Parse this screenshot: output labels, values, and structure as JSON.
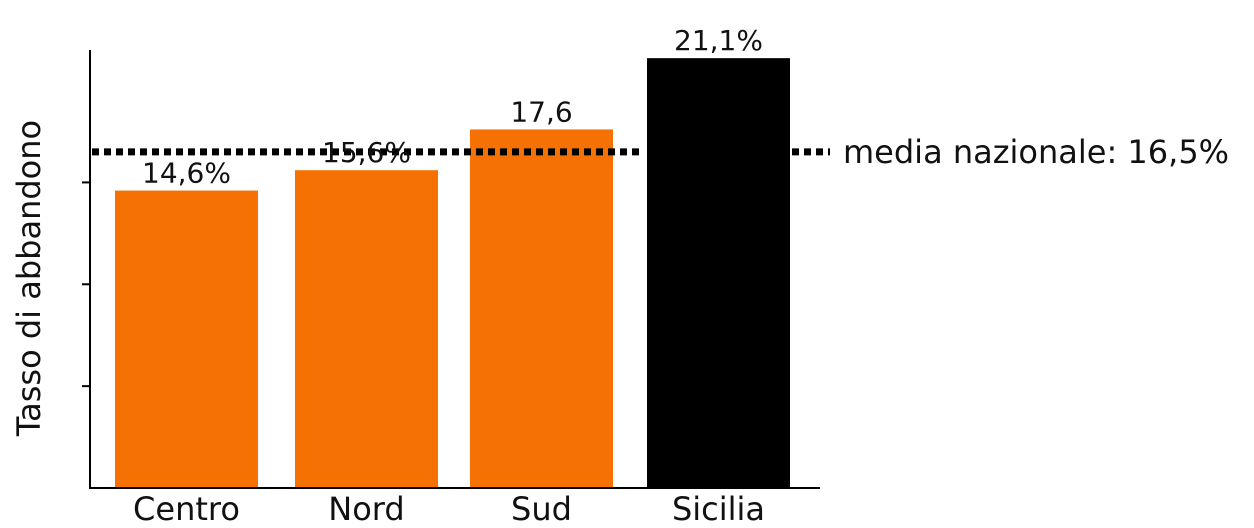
{
  "colors": {
    "bar_default": "#F57104",
    "bar_highlight": "#000000",
    "axis": "#000000",
    "mean_line": "#000000"
  },
  "chart_data": {
    "type": "bar",
    "categories": [
      "Centro",
      "Nord",
      "Sud",
      "Sicilia"
    ],
    "values": [
      14.6,
      15.6,
      17.6,
      21.1
    ],
    "value_labels": [
      "14,6%",
      "15,6%",
      "17,6",
      "21,1%"
    ],
    "highlight": "Sicilia",
    "title": "",
    "xlabel": "",
    "ylabel": "Tasso di abbandono",
    "ylim": [
      0,
      21.5
    ],
    "y_ticks": [
      5,
      10,
      15
    ],
    "y_tick_labels_visible": false,
    "grid": false,
    "reference_line": {
      "value": 16.5,
      "label": "media nazionale: 16,5%",
      "style": "dotted"
    }
  }
}
